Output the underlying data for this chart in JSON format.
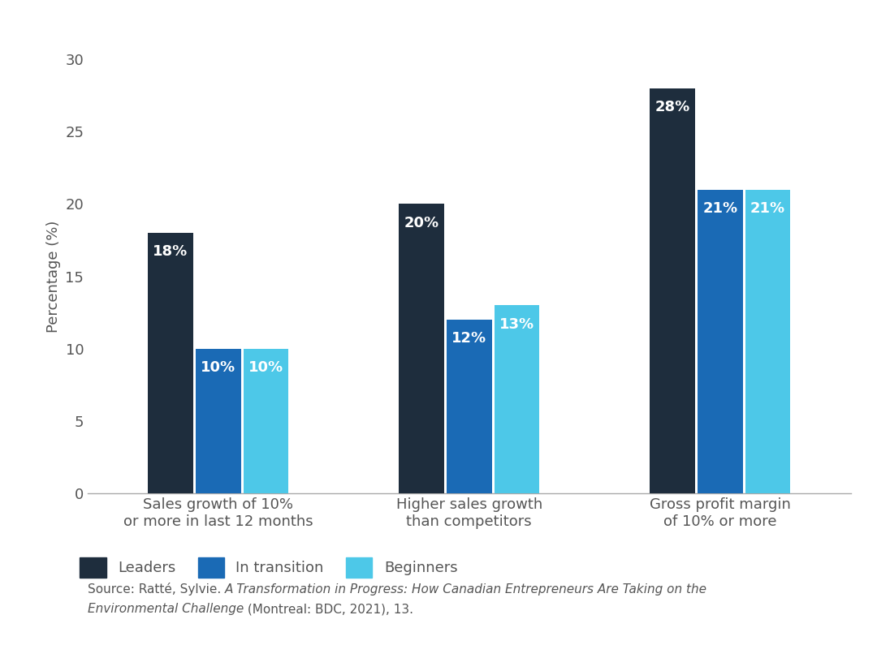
{
  "categories": [
    "Sales growth of 10%\nor more in last 12 months",
    "Higher sales growth\nthan competitors",
    "Gross profit margin\nof 10% or more"
  ],
  "series": {
    "Leaders": [
      18,
      20,
      28
    ],
    "In transition": [
      10,
      12,
      21
    ],
    "Beginners": [
      10,
      13,
      21
    ]
  },
  "colors": {
    "Leaders": "#1e2d3d",
    "In transition": "#1a6ab5",
    "Beginners": "#4dc8e8"
  },
  "ylabel": "Percentage (%)",
  "ylim": [
    0,
    30
  ],
  "yticks": [
    0,
    5,
    10,
    15,
    20,
    25,
    30
  ],
  "bar_width": 0.18,
  "label_color": "#ffffff",
  "label_fontsize": 13,
  "axis_label_fontsize": 13,
  "tick_fontsize": 13,
  "legend_fontsize": 13,
  "background_color": "#ffffff",
  "top_bar_color": "#111111",
  "axis_color": "#aaaaaa",
  "tick_color": "#555555",
  "text_color": "#555555",
  "source_normal1": "Source: Ratté, Sylvie. ",
  "source_italic": "A Transformation in Progress: How Canadian Entrepreneurs Are Taking on the",
  "source_normal2": "",
  "source_italic2": "Environmental Challenge",
  "source_normal3": " (Montreal: BDC, 2021), 13.",
  "source_fontsize": 11
}
